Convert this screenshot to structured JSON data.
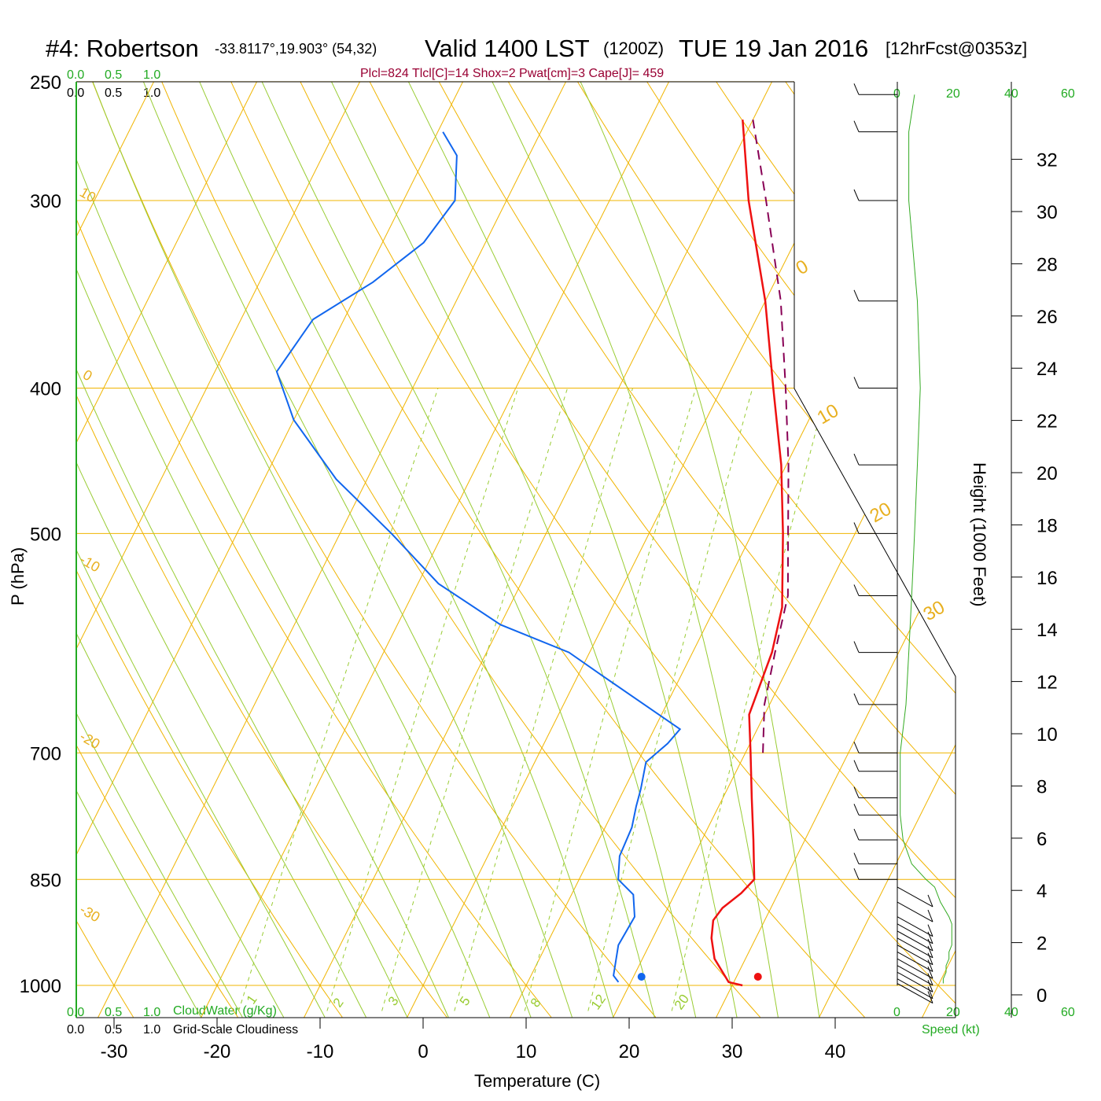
{
  "title": {
    "station": "#4: Robertson",
    "coords": "-33.8117°,19.903° (54,32)",
    "valid": "Valid 1400 LST",
    "zulu": "(1200Z)",
    "date": "TUE 19 Jan 2016",
    "forecast": "[12hrFcst@0353z]"
  },
  "params_text": "Plcl=824 Tlcl[C]=14 Shox=2 Pwat[cm]=3 Cape[J]= 459",
  "legend": {
    "cloud_water_ticks": [
      "0.0",
      "0.5",
      "1.0"
    ],
    "cloudiness_ticks": [
      "0.0",
      "0.5",
      "1.0"
    ],
    "cloud_water_label": "CloudWater (g/Kg)",
    "cloudiness_label": "Grid-Scale Cloudiness",
    "speed_ticks": [
      "0",
      "20",
      "40",
      "60"
    ],
    "speed_label": "Speed (kt)"
  },
  "colors": {
    "temperature": "#ee1111",
    "dewpoint": "#1166ee",
    "parcel": "#880055",
    "isotherm": "#f0b400",
    "mixing_ratio": "#99cc33",
    "speed_profile": "#33aa22",
    "axis_green": "#22aa22"
  },
  "chart_data": {
    "type": "skew-t",
    "xlabel": "Temperature (C)",
    "ylabel": "P (hPa)",
    "y2label": "Height (1000 Feet)",
    "x_ticks": [
      -30,
      -20,
      -10,
      0,
      10,
      20,
      30,
      40
    ],
    "p_ticks": [
      250,
      300,
      400,
      500,
      700,
      850,
      1000
    ],
    "height_ticks": [
      0,
      2,
      4,
      6,
      8,
      10,
      12,
      14,
      16,
      18,
      20,
      22,
      24,
      26,
      28,
      30,
      32
    ],
    "pressure_range_hpa": [
      250,
      1040
    ],
    "temperature_range_c": [
      -33,
      36
    ],
    "isotherm_labels": [
      "10",
      "0",
      "-10",
      "-20",
      "-30",
      "0",
      "10",
      "20",
      "30"
    ],
    "mixing_ratio_labels": [
      "1",
      "2",
      "3",
      "5",
      "8",
      "12",
      "20"
    ],
    "temperature_profile": [
      [
        1000,
        31.0
      ],
      [
        995,
        29.5
      ],
      [
        985,
        28.8
      ],
      [
        960,
        27.0
      ],
      [
        930,
        25.7
      ],
      [
        905,
        25.0
      ],
      [
        888,
        25.3
      ],
      [
        868,
        26.4
      ],
      [
        850,
        27.0
      ],
      [
        800,
        25.0
      ],
      [
        750,
        22.8
      ],
      [
        700,
        20.5
      ],
      [
        660,
        18.5
      ],
      [
        600,
        17.7
      ],
      [
        560,
        16.5
      ],
      [
        500,
        13.0
      ],
      [
        450,
        9.5
      ],
      [
        400,
        5.0
      ],
      [
        350,
        0.0
      ],
      [
        300,
        -6.5
      ],
      [
        265,
        -11.0
      ]
    ],
    "dewpoint_profile": [
      [
        995,
        18.8
      ],
      [
        985,
        18.0
      ],
      [
        940,
        17.0
      ],
      [
        900,
        17.2
      ],
      [
        870,
        16.0
      ],
      [
        850,
        13.8
      ],
      [
        820,
        12.8
      ],
      [
        785,
        12.6
      ],
      [
        760,
        12.0
      ],
      [
        740,
        11.6
      ],
      [
        710,
        10.8
      ],
      [
        690,
        12.0
      ],
      [
        675,
        12.5
      ],
      [
        620,
        2.0
      ],
      [
        600,
        -2.0
      ],
      [
        575,
        -10.0
      ],
      [
        540,
        -18.0
      ],
      [
        500,
        -25.0
      ],
      [
        460,
        -33.0
      ],
      [
        420,
        -40.0
      ],
      [
        390,
        -44.0
      ],
      [
        360,
        -43.0
      ],
      [
        340,
        -39.0
      ],
      [
        320,
        -36.0
      ],
      [
        300,
        -35.0
      ],
      [
        280,
        -37.0
      ],
      [
        270,
        -39.5
      ]
    ],
    "parcel_profile": [
      [
        700,
        21.7
      ],
      [
        650,
        19.5
      ],
      [
        600,
        18.0
      ],
      [
        550,
        16.5
      ],
      [
        500,
        13.5
      ],
      [
        450,
        10.2
      ],
      [
        400,
        6.2
      ],
      [
        350,
        1.5
      ],
      [
        300,
        -4.8
      ],
      [
        265,
        -10.0
      ]
    ],
    "surface_temperature_c": 32.5,
    "surface_dewpoint_c": 21.2,
    "surface_pressure_hpa": 995,
    "wind_speed_kt": [
      [
        997,
        16
      ],
      [
        990,
        16
      ],
      [
        980,
        17
      ],
      [
        970,
        17
      ],
      [
        960,
        18
      ],
      [
        950,
        18
      ],
      [
        940,
        19
      ],
      [
        930,
        19
      ],
      [
        920,
        19
      ],
      [
        910,
        19
      ],
      [
        900,
        18
      ],
      [
        880,
        15
      ],
      [
        860,
        13
      ],
      [
        850,
        10
      ],
      [
        830,
        5
      ],
      [
        800,
        2
      ],
      [
        770,
        1
      ],
      [
        750,
        1
      ],
      [
        720,
        1
      ],
      [
        700,
        1
      ],
      [
        650,
        3
      ],
      [
        600,
        4
      ],
      [
        550,
        5
      ],
      [
        500,
        6
      ],
      [
        450,
        7
      ],
      [
        400,
        8
      ],
      [
        350,
        7
      ],
      [
        300,
        4
      ],
      [
        270,
        4
      ],
      [
        255,
        6
      ]
    ]
  }
}
